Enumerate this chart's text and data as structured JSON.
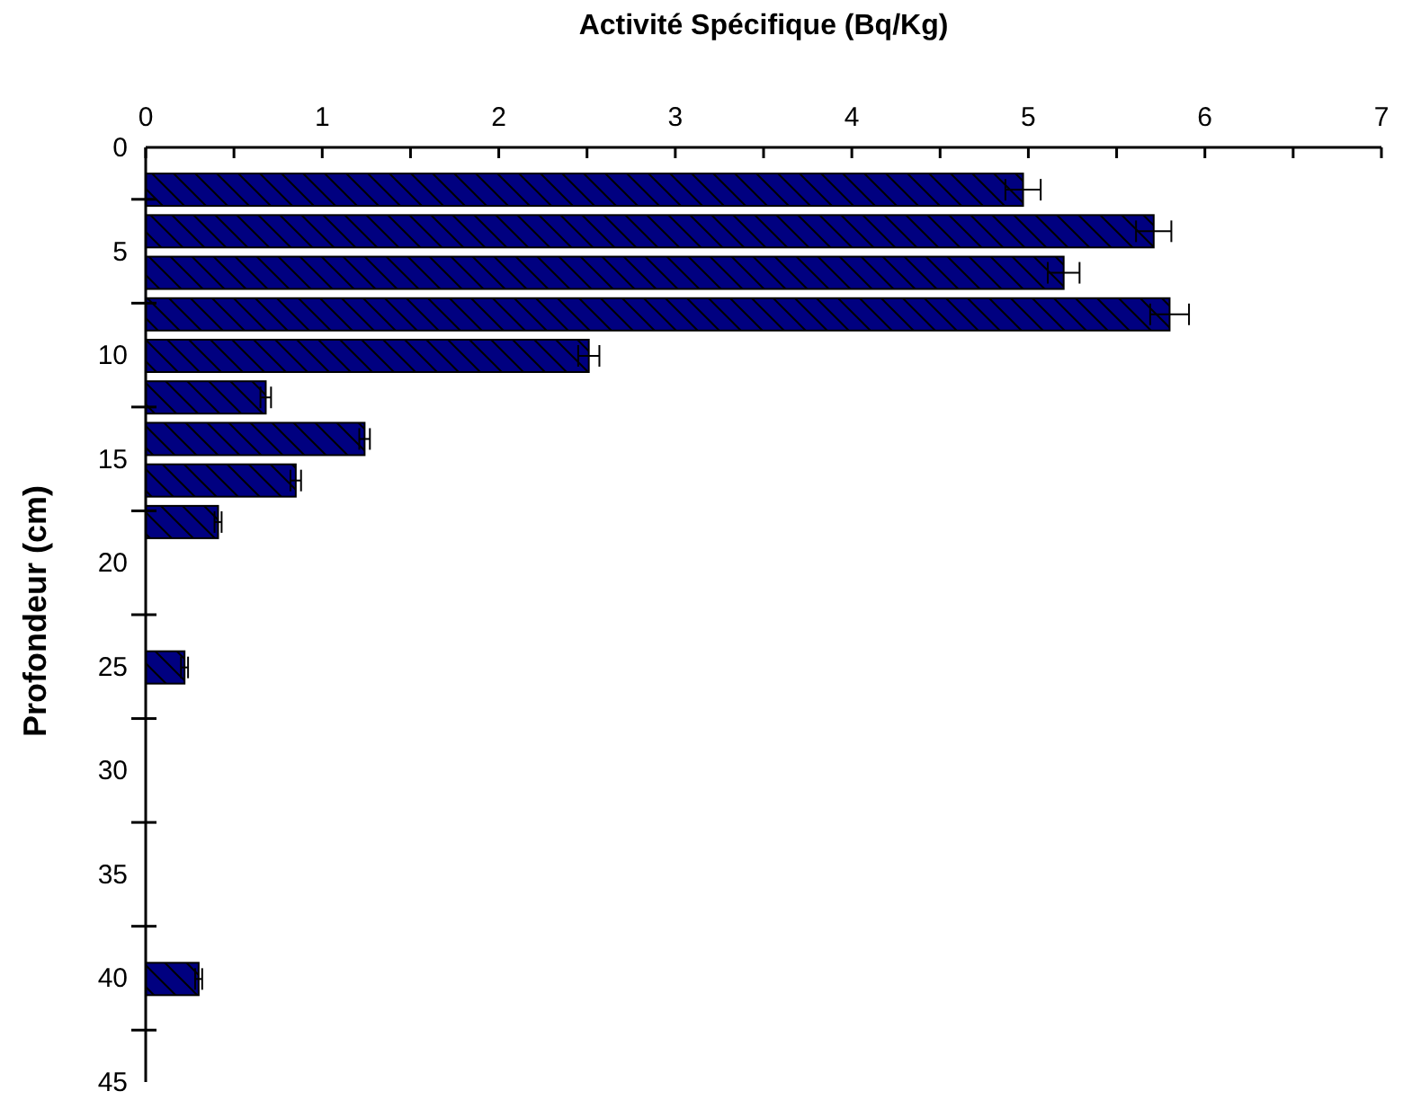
{
  "chart_data": {
    "type": "bar",
    "orientation": "horizontal",
    "xlabel": "Activité Spécifique (Bq/Kg)",
    "ylabel": "Profondeur (cm)",
    "x": [
      2,
      4,
      6,
      8,
      10,
      12,
      14,
      16,
      18,
      25,
      40
    ],
    "values": [
      4.97,
      5.71,
      5.2,
      5.8,
      2.51,
      0.68,
      1.24,
      0.85,
      0.41,
      0.22,
      0.3
    ],
    "errors": [
      0.1,
      0.1,
      0.09,
      0.11,
      0.06,
      0.03,
      0.03,
      0.03,
      0.02,
      0.02,
      0.02
    ],
    "color": "#000080",
    "xlim": [
      0,
      7
    ],
    "xticks": [
      0,
      {
        "value": 0.5,
        "label": null
      },
      1,
      {
        "value": 1.5,
        "label": null
      },
      2,
      {
        "value": 2.5,
        "label": null
      },
      3,
      {
        "value": 3.5,
        "label": null
      },
      4,
      {
        "value": 4.5,
        "label": null
      },
      5,
      {
        "value": 5.5,
        "label": null
      },
      6,
      {
        "value": 6.5,
        "label": null
      },
      7
    ],
    "ylim": [
      45,
      0
    ],
    "yticks": [
      0,
      {
        "value": 2.5,
        "label": null
      },
      5,
      {
        "value": 7.5,
        "label": null
      },
      10,
      {
        "value": 12.5,
        "label": null
      },
      15,
      {
        "value": 17.5,
        "label": null
      },
      20,
      {
        "value": 22.5,
        "label": null
      },
      25,
      {
        "value": 27.5,
        "label": null
      },
      30,
      {
        "value": 32.5,
        "label": null
      },
      35,
      {
        "value": 37.5,
        "label": null
      },
      40,
      {
        "value": 42.5,
        "label": null
      },
      45
    ],
    "grid": false,
    "legend": false
  }
}
